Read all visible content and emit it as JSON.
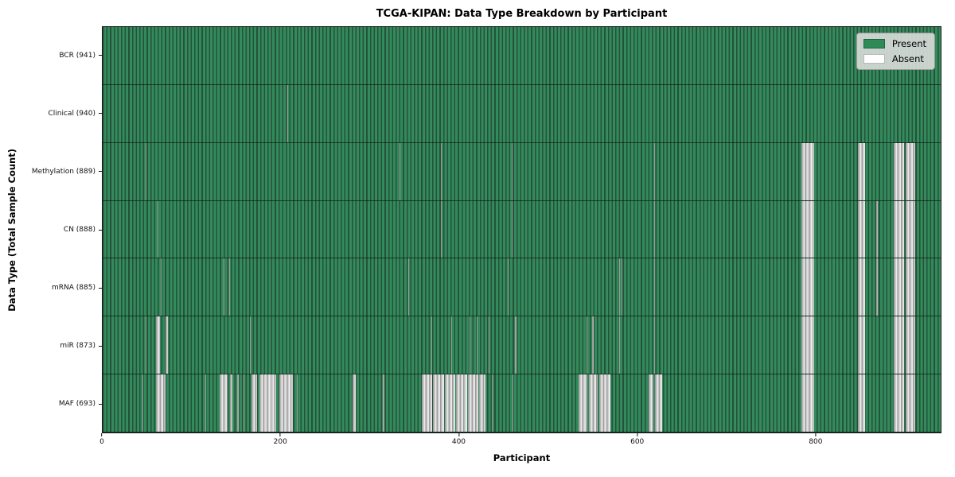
{
  "chart": {
    "title": "TCGA-KIPAN: Data Type Breakdown by Participant",
    "xlabel": "Participant",
    "ylabel": "Data Type (Total Sample Count)"
  },
  "legend": {
    "items": [
      {
        "label": "Present",
        "color": "#2e8b57"
      },
      {
        "label": "Absent",
        "color": "#ffffff"
      }
    ]
  },
  "chart_data": {
    "type": "heatmap",
    "title": "TCGA-KIPAN: Data Type Breakdown by Participant",
    "xlabel": "Participant",
    "ylabel": "Data Type (Total Sample Count)",
    "x_min": 0,
    "x_max": 941,
    "x_ticks": [
      0,
      200,
      400,
      600,
      800
    ],
    "n_participants": 941,
    "grid": false,
    "legend_position": "upper right",
    "colors": {
      "present": "#2e8b57",
      "absent": "#ffffff"
    },
    "rows": [
      {
        "name": "bcr",
        "label": "BCR (941)",
        "data_type": "BCR",
        "present_count": 941,
        "absent_ranges": []
      },
      {
        "name": "clinical",
        "label": "Clinical (940)",
        "data_type": "Clinical",
        "present_count": 940,
        "absent_ranges": [
          [
            207,
            208
          ]
        ]
      },
      {
        "name": "methylation",
        "label": "Methylation (889)",
        "data_type": "Methylation",
        "present_count": 889,
        "absent_ranges": [
          [
            48,
            49
          ],
          [
            333,
            334
          ],
          [
            380,
            381
          ],
          [
            459,
            460
          ],
          [
            619,
            620
          ],
          [
            785,
            799
          ],
          [
            848,
            856
          ],
          [
            888,
            900
          ],
          [
            902,
            912
          ]
        ]
      },
      {
        "name": "cn",
        "label": "CN (888)",
        "data_type": "CN",
        "present_count": 888,
        "absent_ranges": [
          [
            62,
            63
          ],
          [
            380,
            381
          ],
          [
            459,
            460
          ],
          [
            619,
            620
          ],
          [
            785,
            799
          ],
          [
            848,
            856
          ],
          [
            869,
            870
          ],
          [
            888,
            900
          ],
          [
            902,
            912
          ]
        ]
      },
      {
        "name": "mrna",
        "label": "mRNA (885)",
        "data_type": "mRNA",
        "present_count": 885,
        "absent_ranges": [
          [
            65,
            66
          ],
          [
            136,
            137
          ],
          [
            142,
            143
          ],
          [
            343,
            344
          ],
          [
            455,
            456
          ],
          [
            580,
            581
          ],
          [
            583,
            584
          ],
          [
            619,
            620
          ],
          [
            785,
            799
          ],
          [
            848,
            856
          ],
          [
            869,
            870
          ],
          [
            888,
            900
          ],
          [
            902,
            912
          ]
        ]
      },
      {
        "name": "mir",
        "label": "miR (873)",
        "data_type": "miR",
        "present_count": 873,
        "absent_ranges": [
          [
            48,
            49
          ],
          [
            60,
            64
          ],
          [
            71,
            73
          ],
          [
            165,
            166
          ],
          [
            369,
            370
          ],
          [
            391,
            392
          ],
          [
            412,
            413
          ],
          [
            420,
            421
          ],
          [
            433,
            434
          ],
          [
            463,
            465
          ],
          [
            543,
            544
          ],
          [
            550,
            551
          ],
          [
            580,
            581
          ],
          [
            619,
            620
          ],
          [
            785,
            799
          ],
          [
            848,
            856
          ],
          [
            888,
            900
          ],
          [
            902,
            912
          ]
        ]
      },
      {
        "name": "maf",
        "label": "MAF (693)",
        "data_type": "MAF",
        "present_count": 693,
        "absent_ranges": [
          [
            45,
            46
          ],
          [
            60,
            71
          ],
          [
            115,
            116
          ],
          [
            131,
            140
          ],
          [
            143,
            146
          ],
          [
            151,
            153
          ],
          [
            158,
            159
          ],
          [
            167,
            173
          ],
          [
            176,
            195
          ],
          [
            198,
            214
          ],
          [
            218,
            219
          ],
          [
            281,
            284
          ],
          [
            315,
            316
          ],
          [
            358,
            370
          ],
          [
            371,
            383
          ],
          [
            384,
            396
          ],
          [
            397,
            409
          ],
          [
            410,
            422
          ],
          [
            423,
            430
          ],
          [
            437,
            438
          ],
          [
            460,
            461
          ],
          [
            534,
            544
          ],
          [
            546,
            556
          ],
          [
            558,
            570
          ],
          [
            613,
            618
          ],
          [
            620,
            628
          ],
          [
            785,
            799
          ],
          [
            848,
            856
          ],
          [
            888,
            900
          ],
          [
            902,
            912
          ]
        ]
      }
    ]
  }
}
